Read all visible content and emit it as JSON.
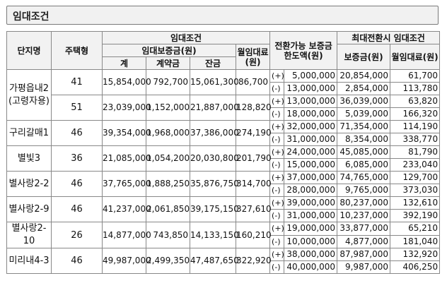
{
  "title": "임대조건",
  "headers": {
    "complex": "단지명",
    "type": "주택형",
    "lease_conditions": "임대조건",
    "deposit": "임대보증금(원)",
    "total": "계",
    "contract": "계약금",
    "balance": "잔금",
    "monthly_rent": "월임대료(원)",
    "conversion": "전환가능 보증금 한도액(원)",
    "max_conversion": "최대전환시 임대조건",
    "max_deposit": "보증금(원)",
    "max_rent": "월임대료(원)"
  },
  "rows": [
    {
      "complex": "가평읍내2 (고령자용)",
      "type": "41",
      "total": "15,854,000",
      "contract": "792,700",
      "balance": "15,061,300",
      "rent": "86,700",
      "up_sign": "(+)",
      "up_limit": "5,000,000",
      "up_deposit": "20,854,000",
      "up_rent": "61,700",
      "dn_sign": "(-)",
      "dn_limit": "13,000,000",
      "dn_deposit": "2,854,000",
      "dn_rent": "113,780"
    },
    {
      "complex": "",
      "type": "51",
      "total": "23,039,000",
      "contract": "1,152,000",
      "balance": "21,887,000",
      "rent": "128,820",
      "up_sign": "(+)",
      "up_limit": "13,000,000",
      "up_deposit": "36,039,000",
      "up_rent": "63,820",
      "dn_sign": "(-)",
      "dn_limit": "18,000,000",
      "dn_deposit": "5,039,000",
      "dn_rent": "166,320"
    },
    {
      "complex": "구리갈매1",
      "type": "46",
      "total": "39,354,000",
      "contract": "1,968,000",
      "balance": "37,386,000",
      "rent": "274,190",
      "up_sign": "(+)",
      "up_limit": "32,000,000",
      "up_deposit": "71,354,000",
      "up_rent": "114,190",
      "dn_sign": "(-)",
      "dn_limit": "31,000,000",
      "dn_deposit": "8,354,000",
      "dn_rent": "338,770"
    },
    {
      "complex": "별빛3",
      "type": "36",
      "total": "21,085,000",
      "contract": "1,054,200",
      "balance": "20,030,800",
      "rent": "201,790",
      "up_sign": "(+)",
      "up_limit": "24,000,000",
      "up_deposit": "45,085,000",
      "up_rent": "81,790",
      "dn_sign": "(-)",
      "dn_limit": "15,000,000",
      "dn_deposit": "6,085,000",
      "dn_rent": "233,040"
    },
    {
      "complex": "별사랑2-2",
      "type": "46",
      "total": "37,765,000",
      "contract": "1,888,250",
      "balance": "35,876,750",
      "rent": "314,700",
      "up_sign": "(+)",
      "up_limit": "37,000,000",
      "up_deposit": "74,765,000",
      "up_rent": "129,700",
      "dn_sign": "(-)",
      "dn_limit": "28,000,000",
      "dn_deposit": "9,765,000",
      "dn_rent": "373,030"
    },
    {
      "complex": "별사랑2-9",
      "type": "46",
      "total": "41,237,000",
      "contract": "2,061,850",
      "balance": "39,175,150",
      "rent": "327,610",
      "up_sign": "(+)",
      "up_limit": "39,000,000",
      "up_deposit": "80,237,000",
      "up_rent": "132,610",
      "dn_sign": "(-)",
      "dn_limit": "31,000,000",
      "dn_deposit": "10,237,000",
      "dn_rent": "392,190"
    },
    {
      "complex": "별사랑2-10",
      "type": "26",
      "total": "14,877,000",
      "contract": "743,850",
      "balance": "14,133,150",
      "rent": "160,210",
      "up_sign": "(+)",
      "up_limit": "19,000,000",
      "up_deposit": "33,877,000",
      "up_rent": "65,210",
      "dn_sign": "(-)",
      "dn_limit": "10,000,000",
      "dn_deposit": "4,877,000",
      "dn_rent": "181,040"
    },
    {
      "complex": "미리내4-3",
      "type": "46",
      "total": "49,987,000",
      "contract": "2,499,350",
      "balance": "47,487,650",
      "rent": "322,920",
      "up_sign": "(+)",
      "up_limit": "38,000,000",
      "up_deposit": "87,987,000",
      "up_rent": "132,920",
      "dn_sign": "(-)",
      "dn_limit": "40,000,000",
      "dn_deposit": "9,987,000",
      "dn_rent": "406,250"
    }
  ]
}
